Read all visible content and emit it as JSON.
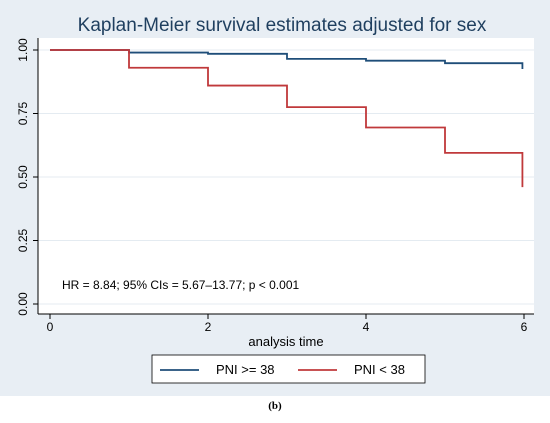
{
  "panel_label": "(b)",
  "chart_data": {
    "type": "line",
    "title": "Kaplan-Meier survival estimates adjusted for sex",
    "xlabel": "analysis time",
    "ylabel": "",
    "xlim": [
      0,
      6
    ],
    "ylim": [
      0,
      1
    ],
    "x_ticks": [
      0,
      2,
      4,
      6
    ],
    "y_ticks": [
      0.0,
      0.25,
      0.5,
      0.75,
      1.0
    ],
    "y_tick_labels": [
      "0.00",
      "0.25",
      "0.50",
      "0.75",
      "1.00"
    ],
    "step": true,
    "grid": "horizontal",
    "legend_position": "bottom",
    "annotation": "HR = 8.84; 95% CIs = 5.67–13.77; p < 0.001",
    "colors": {
      "outer_background": "#e8eef4",
      "plot_background": "#ffffff",
      "title_background": "#e8eef4",
      "grid": "#e4ebf1",
      "axis": "#000000"
    },
    "series": [
      {
        "name": "PNI >= 38",
        "color": "#1f4e79",
        "points": [
          [
            0,
            1.0
          ],
          [
            1,
            0.99
          ],
          [
            2,
            0.985
          ],
          [
            3,
            0.965
          ],
          [
            4,
            0.958
          ],
          [
            5,
            0.948
          ],
          [
            5.98,
            0.948
          ],
          [
            5.98,
            0.925
          ]
        ]
      },
      {
        "name": "PNI < 38",
        "color": "#c0393b",
        "points": [
          [
            0,
            1.0
          ],
          [
            1,
            0.93
          ],
          [
            2,
            0.86
          ],
          [
            3,
            0.775
          ],
          [
            4,
            0.695
          ],
          [
            5,
            0.595
          ],
          [
            5.98,
            0.595
          ],
          [
            5.98,
            0.46
          ]
        ]
      }
    ]
  }
}
